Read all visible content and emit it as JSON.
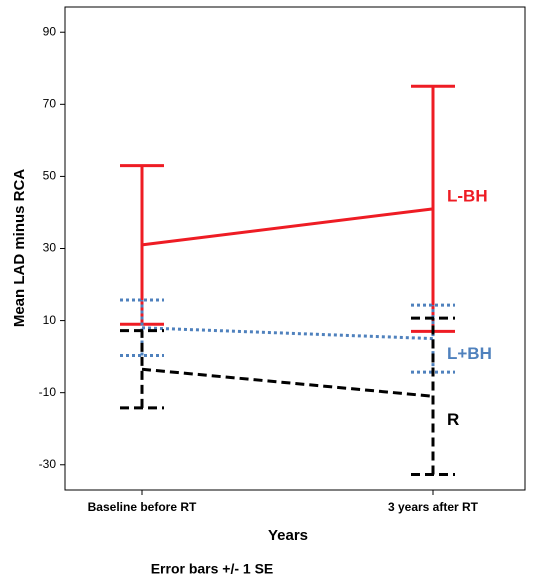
{
  "chart_data": {
    "type": "line",
    "categories": [
      "Baseline before RT",
      "3 years after RT"
    ],
    "series": [
      {
        "name": "L-BH",
        "color": "#ee1c24",
        "style": "solid",
        "values": [
          31,
          41
        ],
        "errors": [
          22,
          34
        ]
      },
      {
        "name": "L+BH",
        "color": "#4f81bd",
        "style": "dotted",
        "values": [
          8,
          5
        ],
        "errors": [
          7.7,
          9.3
        ]
      },
      {
        "name": "R",
        "color": "#000000",
        "style": "dashed",
        "values": [
          -3.5,
          -11
        ],
        "errors": [
          10.7,
          21.7
        ]
      }
    ],
    "ylabel": "Mean LAD minus RCA",
    "xlabel": "Years",
    "note": "Error bars +/- 1 SE",
    "ylim": [
      -37,
      97
    ],
    "yticks": [
      90,
      70,
      50,
      30,
      10,
      -10,
      -30
    ],
    "grid": false
  }
}
